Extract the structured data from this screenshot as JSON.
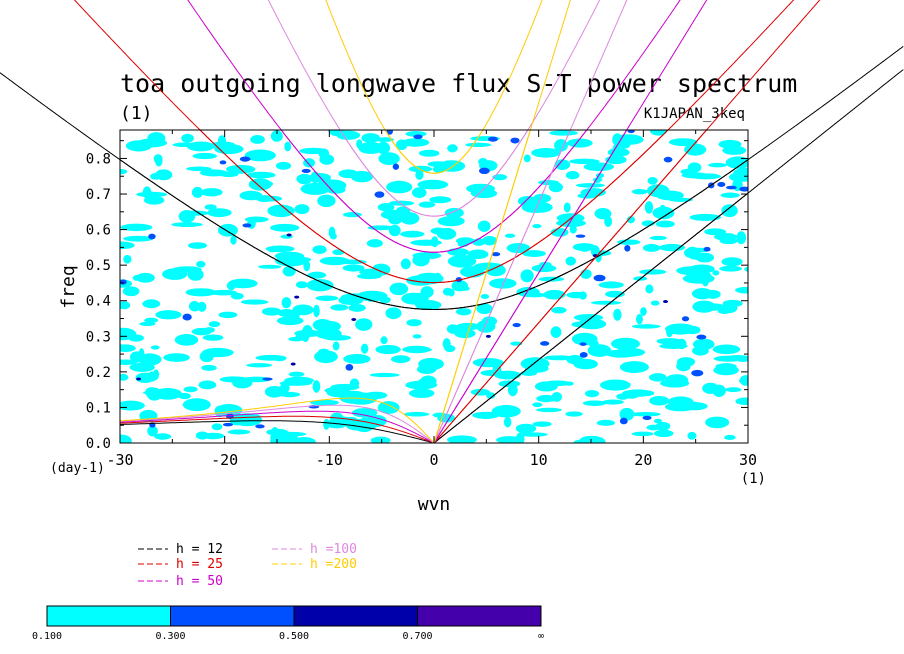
{
  "chart_data": {
    "type": "contour",
    "title": "toa outgoing longwave flux S-T power spectrum",
    "subtitle_left": "(1)",
    "subtitle_right": "K1JAPAN_3keq",
    "xlabel": "wvn",
    "ylabel": "freq",
    "x_unit": "(1)",
    "y_unit": "(day-1)",
    "xlim": [
      -30,
      30
    ],
    "ylim": [
      0,
      0.88
    ],
    "x_ticks": [
      -30,
      -20,
      -10,
      0,
      10,
      20,
      30
    ],
    "x_tick_labels": [
      "-30",
      "-20",
      "-10",
      "0",
      "10",
      "20",
      "30"
    ],
    "y_ticks": [
      0.0,
      0.1,
      0.2,
      0.3,
      0.4,
      0.5,
      0.6,
      0.7,
      0.8
    ],
    "y_tick_labels": [
      "0.0",
      "0.1",
      "0.2",
      "0.3",
      "0.4",
      "0.5",
      "0.6",
      "0.7",
      "0.8"
    ],
    "dispersion_curves": [
      {
        "label": "h = 12",
        "h": 12,
        "color": "#000000"
      },
      {
        "label": "h = 25",
        "h": 25,
        "color": "#dd0000"
      },
      {
        "label": "h = 50",
        "h": 50,
        "color": "#cc00cc"
      },
      {
        "label": "h =100",
        "h": 100,
        "color": "#dd88dd"
      },
      {
        "label": "h =200",
        "h": 200,
        "color": "#ffcc00"
      }
    ],
    "colorbar": {
      "levels": [
        "0.100",
        "0.300",
        "0.500",
        "0.700",
        "∞"
      ],
      "colors": [
        "#00ffff",
        "#0050ff",
        "#0000aa",
        "#4400aa"
      ]
    }
  }
}
